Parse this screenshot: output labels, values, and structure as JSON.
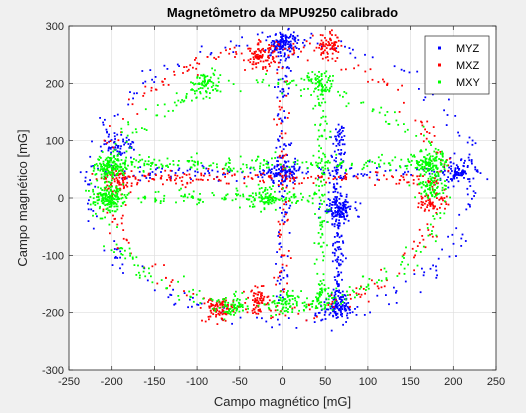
{
  "chart_data": {
    "type": "scatter",
    "title": "Magnetômetro da MPU9250 calibrado",
    "xlabel": "Campo magnético [mG]",
    "ylabel": "Campo magnético [mG]",
    "xlim": [
      -250,
      250
    ],
    "ylim": [
      -300,
      300
    ],
    "xticks": [
      -250,
      -200,
      -150,
      -100,
      -50,
      0,
      50,
      100,
      150,
      200,
      250
    ],
    "yticks": [
      -300,
      -200,
      -100,
      0,
      100,
      200,
      300
    ],
    "grid": true,
    "legend_position": "top-right",
    "series": [
      {
        "name": "MYZ",
        "color": "#0000ff",
        "clusters": [
          {
            "x": 0,
            "y": 270,
            "count": 120
          },
          {
            "x": 0,
            "y": 45,
            "count": 110
          },
          {
            "x": 65,
            "y": -190,
            "count": 110
          },
          {
            "x": 65,
            "y": -20,
            "count": 130
          },
          {
            "x": 205,
            "y": 45,
            "count": 80
          },
          {
            "x": -190,
            "y": 90,
            "count": 60
          }
        ],
        "ring": {
          "cx": 0,
          "cy": 30,
          "rx": 225,
          "ry": 245,
          "count": 220
        },
        "lines": [
          {
            "from": [
              -215,
              45
            ],
            "to": [
              215,
              45
            ],
            "count": 150
          },
          {
            "from": [
              0,
              -180
            ],
            "to": [
              0,
              275
            ],
            "count": 120
          },
          {
            "from": [
              65,
              -195
            ],
            "to": [
              65,
              130
            ],
            "count": 180
          }
        ]
      },
      {
        "name": "MXZ",
        "color": "#ff0000",
        "clusters": [
          {
            "x": -25,
            "y": 245,
            "count": 90
          },
          {
            "x": 55,
            "y": 265,
            "count": 70
          },
          {
            "x": -75,
            "y": -195,
            "count": 90
          },
          {
            "x": -25,
            "y": -180,
            "count": 70
          },
          {
            "x": -190,
            "y": 30,
            "count": 60
          },
          {
            "x": 175,
            "y": -5,
            "count": 50
          }
        ],
        "ring": {
          "cx": -10,
          "cy": 30,
          "rx": 195,
          "ry": 230,
          "count": 260
        },
        "lines": [
          {
            "from": [
              -210,
              35
            ],
            "to": [
              180,
              35
            ],
            "count": 170
          },
          {
            "from": [
              0,
              -170
            ],
            "to": [
              0,
              230
            ],
            "count": 70
          }
        ]
      },
      {
        "name": "MXY",
        "color": "#00ff00",
        "clusters": [
          {
            "x": -205,
            "y": 0,
            "count": 140
          },
          {
            "x": -200,
            "y": 55,
            "count": 130
          },
          {
            "x": 175,
            "y": 65,
            "count": 90
          },
          {
            "x": 175,
            "y": 20,
            "count": 80
          },
          {
            "x": -90,
            "y": 200,
            "count": 70
          },
          {
            "x": 45,
            "y": 200,
            "count": 60
          },
          {
            "x": -60,
            "y": -190,
            "count": 60
          },
          {
            "x": 0,
            "y": -185,
            "count": 70
          },
          {
            "x": 45,
            "y": -180,
            "count": 50
          },
          {
            "x": -20,
            "y": 0,
            "count": 70
          }
        ],
        "ring": {
          "cx": -15,
          "cy": 5,
          "rx": 200,
          "ry": 195,
          "count": 280
        },
        "lines": [
          {
            "from": [
              -215,
              60
            ],
            "to": [
              180,
              60
            ],
            "count": 220
          },
          {
            "from": [
              -215,
              0
            ],
            "to": [
              50,
              0
            ],
            "count": 140
          },
          {
            "from": [
              45,
              -185
            ],
            "to": [
              45,
              200
            ],
            "count": 120
          }
        ]
      }
    ]
  }
}
